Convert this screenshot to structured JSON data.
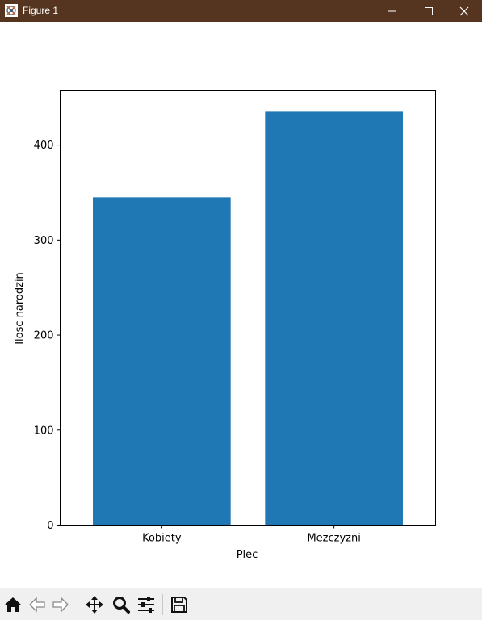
{
  "window": {
    "title": "Figure 1",
    "icons": [
      "figure-icon",
      "minimize-icon",
      "maximize-icon",
      "close-icon"
    ]
  },
  "toolbar": {
    "icons": [
      "home-icon",
      "back-icon",
      "forward-icon",
      "pan-icon",
      "zoom-icon",
      "configure-subplots-icon",
      "save-icon"
    ]
  },
  "chart_data": {
    "type": "bar",
    "categories": [
      "Kobiety",
      "Mezczyzni"
    ],
    "values": [
      345,
      435
    ],
    "title": "",
    "xlabel": "Plec",
    "ylabel": "Ilosc narodzin",
    "ylim": [
      0,
      457
    ],
    "yticks": [
      0,
      100,
      200,
      300,
      400
    ],
    "grid": false,
    "bar_color": "#1f77b4"
  }
}
